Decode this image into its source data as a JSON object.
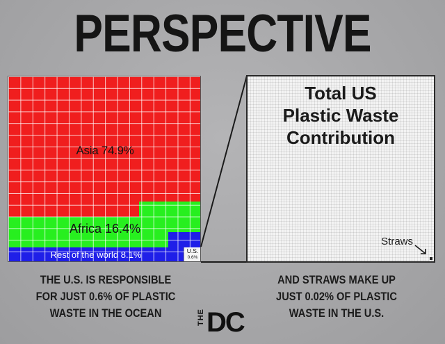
{
  "title": "PERSPECTIVE",
  "left_chart": {
    "regions": [
      {
        "name": "Asia",
        "label": "Asia 74.9%",
        "percent": 74.9,
        "color": "#f01e1e"
      },
      {
        "name": "Africa",
        "label": "Africa 16.4%",
        "percent": 16.4,
        "color": "#27ef1f"
      },
      {
        "name": "Rest of the world",
        "label": "Rest of the world 8.1%",
        "percent": 8.1,
        "color": "#1f1fe8"
      },
      {
        "name": "U.S.",
        "label_line1": "U.S.",
        "label_line2": "0.6%",
        "percent": 0.6,
        "color": "#f5f5f5"
      }
    ]
  },
  "right_panel": {
    "title_line1": "Total US",
    "title_line2": "Plastic Waste",
    "title_line3": "Contribution",
    "straws_label": "Straws"
  },
  "captions": {
    "left": [
      "THE U.S. IS RESPONSIBLE",
      "FOR JUST 0.6% OF PLASTIC",
      "WASTE IN THE OCEAN"
    ],
    "right": [
      "AND STRAWS MAKE UP",
      "JUST 0.02% OF PLASTIC",
      "WASTE IN THE U.S."
    ]
  },
  "logo": {
    "small": "THE",
    "large": "DC"
  }
}
